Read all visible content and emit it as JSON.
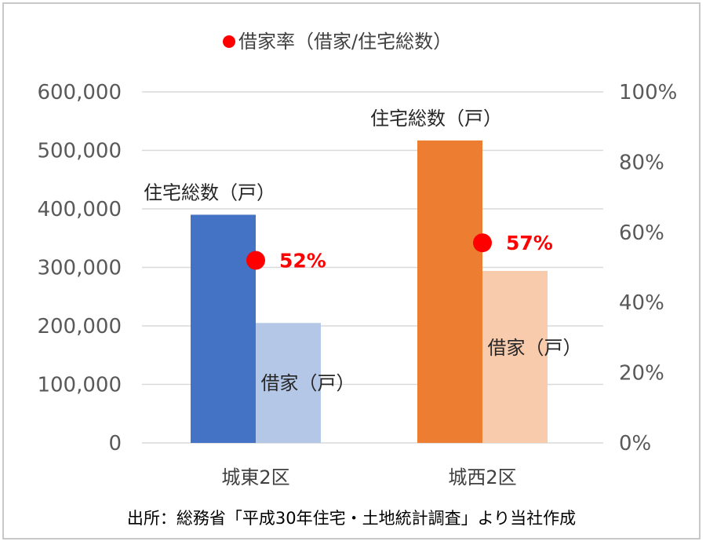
{
  "chart_data": {
    "type": "bar",
    "legend": {
      "label": "借家率（借家/住宅総数）",
      "position": "top",
      "marker_color": "#ff0000"
    },
    "categories": [
      "城東2区",
      "城西2区"
    ],
    "y_left": {
      "ticks": [
        "600,000",
        "500,000",
        "400,000",
        "300,000",
        "200,000",
        "100,000",
        "0"
      ],
      "range": [
        0,
        600000
      ]
    },
    "y_right": {
      "ticks": [
        "100%",
        "80%",
        "60%",
        "40%",
        "20%",
        "0%"
      ],
      "range": [
        0,
        100
      ]
    },
    "series": [
      {
        "name": "住宅総数（戸）",
        "values": [
          390000,
          517000
        ],
        "colors": [
          "#4472c4",
          "#ed7d31"
        ]
      },
      {
        "name": "借家（戸）",
        "values": [
          205000,
          294000
        ],
        "colors": [
          "#b4c7e7",
          "#f8cbad"
        ]
      }
    ],
    "rate": {
      "values": [
        52,
        57
      ],
      "labels": [
        "52%",
        "57%"
      ],
      "color": "#ff0000"
    },
    "source": "出所：総務省「平成30年住宅・土地統計調査」より当社作成"
  }
}
